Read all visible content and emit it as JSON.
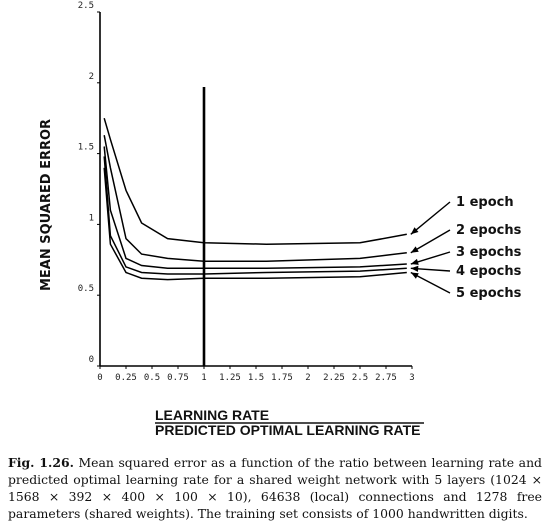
{
  "chart_data": {
    "type": "line",
    "title": "",
    "ylabel": "MEAN SQUARED ERROR",
    "xlabel_top": "LEARNING RATE",
    "xlabel_bottom": "PREDICTED OPTIMAL LEARNING RATE",
    "xlim": [
      0,
      3
    ],
    "ylim": [
      0,
      2.5
    ],
    "x_ticks": [
      "0",
      "0.25",
      "0.5",
      "0.75",
      "1",
      "1.25",
      "1.5",
      "1.75",
      "2",
      "2.25",
      "2.5",
      "2.75",
      "3"
    ],
    "y_ticks": [
      "0",
      "0.5",
      "1",
      "1.5",
      "2",
      "2.5"
    ],
    "vertical_line_x": 1,
    "vertical_line_top": 1.97,
    "series": [
      {
        "name": "1 epoch",
        "x": [
          0.04,
          0.1,
          0.25,
          0.4,
          0.65,
          1.0,
          1.6,
          2.5,
          2.95
        ],
        "y": [
          1.75,
          1.6,
          1.24,
          1.01,
          0.9,
          0.87,
          0.86,
          0.87,
          0.93
        ]
      },
      {
        "name": "2 epochs",
        "x": [
          0.04,
          0.1,
          0.25,
          0.4,
          0.65,
          1.0,
          1.6,
          2.5,
          2.95
        ],
        "y": [
          1.63,
          1.4,
          0.9,
          0.79,
          0.76,
          0.74,
          0.74,
          0.76,
          0.8
        ]
      },
      {
        "name": "3 epochs",
        "x": [
          0.04,
          0.1,
          0.25,
          0.4,
          0.65,
          1.0,
          1.6,
          2.5,
          2.95
        ],
        "y": [
          1.55,
          1.1,
          0.76,
          0.71,
          0.69,
          0.69,
          0.69,
          0.7,
          0.72
        ]
      },
      {
        "name": "4 epochs",
        "x": [
          0.04,
          0.1,
          0.25,
          0.4,
          0.65,
          1.0,
          1.6,
          2.5,
          2.95
        ],
        "y": [
          1.48,
          0.92,
          0.7,
          0.66,
          0.65,
          0.65,
          0.66,
          0.67,
          0.69
        ]
      },
      {
        "name": "5 epochs",
        "x": [
          0.04,
          0.1,
          0.25,
          0.4,
          0.65,
          1.0,
          1.6,
          2.5,
          2.95
        ],
        "y": [
          1.4,
          0.86,
          0.66,
          0.62,
          0.61,
          0.62,
          0.62,
          0.63,
          0.66
        ]
      }
    ]
  },
  "caption": {
    "label": "Fig. 1.26.",
    "text": "Mean squared error as a function of the ratio between learning rate and predicted optimal learning rate for a shared weight network with 5 layers (1024 × 1568 × 392 × 400 × 100 × 10), 64638 (local) connections and 1278 free parameters (shared weights). The training set consists of 1000 handwritten digits."
  }
}
